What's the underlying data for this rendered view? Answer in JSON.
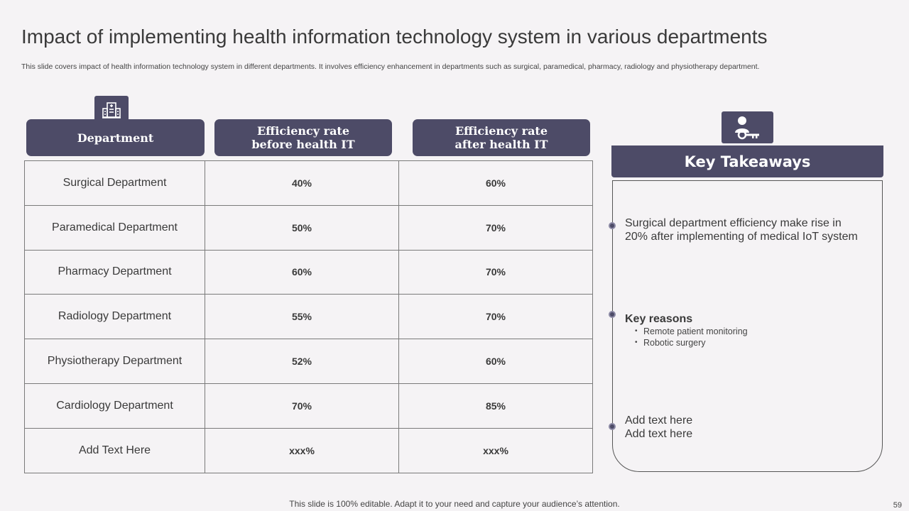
{
  "title": "Impact of implementing health information technology system in various departments",
  "subtitle": "This slide covers impact of health information technology system in different departments. It involves efficiency enhancement in departments such as surgical, paramedical, pharmacy, radiology and physiotherapy department.",
  "icons": {
    "department": "hospital-building-icon",
    "takeaways": "person-key-icon"
  },
  "colors": {
    "accent": "#4d4b67",
    "background": "#f5f3f5"
  },
  "table": {
    "headers": [
      "Department",
      "Efficiency  rate\nbefore health IT",
      "Efficiency  rate\nafter health IT"
    ],
    "rows": [
      {
        "department": "Surgical Department",
        "before": "40%",
        "after": "60%"
      },
      {
        "department": "Paramedical Department",
        "before": "50%",
        "after": "70%"
      },
      {
        "department": "Pharmacy Department",
        "before": "60%",
        "after": "70%"
      },
      {
        "department": "Radiology Department",
        "before": "55%",
        "after": "70%"
      },
      {
        "department": "Physiotherapy  Department",
        "before": "52%",
        "after": "60%"
      },
      {
        "department": "Cardiology Department",
        "before": "70%",
        "after": "85%"
      },
      {
        "department": "Add Text Here",
        "before": "xxx%",
        "after": "xxx%"
      }
    ]
  },
  "takeaways": {
    "heading": "Key Takeaways",
    "point1": "Surgical department efficiency make rise in 20% after implementing of medical IoT system",
    "point2_title": "Key reasons",
    "point2_bullets": [
      "Remote patient monitoring",
      "Robotic surgery"
    ],
    "point3_line1": "Add text here",
    "point3_line2": "Add text here"
  },
  "footer": "This slide is 100% editable. Adapt it to your need and capture your audience’s attention.",
  "page_number": "59"
}
